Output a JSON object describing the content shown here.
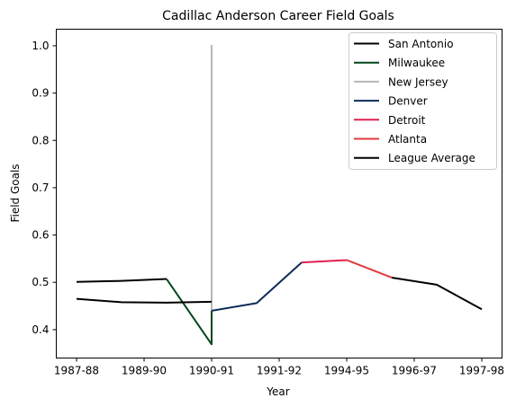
{
  "chart_data": {
    "type": "line",
    "title": "Cadillac Anderson Career Field Goals",
    "xlabel": "Year",
    "ylabel": "Field Goals",
    "x_ticks": [
      "1987-88",
      "1989-90",
      "1990-91",
      "1991-92",
      "1994-95",
      "1996-97",
      "1997-98"
    ],
    "x_tick_index": [
      0,
      1.5,
      3,
      4.5,
      6,
      7.5,
      9
    ],
    "ylim": [
      0.34,
      1.035
    ],
    "xlim": [
      -0.45,
      9.45
    ],
    "y_ticks": [
      "0.4",
      "0.5",
      "0.6",
      "0.7",
      "0.8",
      "0.9",
      "1.0"
    ],
    "legend_position": "top-right",
    "grid": false,
    "series": [
      {
        "name": "San Antonio",
        "color": "#000000",
        "points": [
          [
            0,
            0.501
          ],
          [
            1,
            0.503
          ],
          [
            2,
            0.507
          ]
        ]
      },
      {
        "name": "Milwaukee",
        "color": "#00471b",
        "points": [
          [
            2,
            0.507
          ],
          [
            3,
            0.369
          ],
          [
            3,
            0.44
          ]
        ]
      },
      {
        "name": "New Jersey",
        "color": "#b5b7b9",
        "points": [
          [
            3,
            0.44
          ],
          [
            3,
            1.0
          ],
          [
            3,
            0.44
          ]
        ]
      },
      {
        "name": "Denver",
        "color": "#0d2b5a",
        "points": [
          [
            3,
            0.44
          ],
          [
            4,
            0.456
          ],
          [
            5,
            0.542
          ]
        ]
      },
      {
        "name": "Detroit",
        "color": "#e0204e",
        "points": [
          [
            5,
            0.542
          ],
          [
            6,
            0.547
          ]
        ]
      },
      {
        "name": "Atlanta",
        "color": "#e03a3e",
        "points": [
          [
            6,
            0.547
          ],
          [
            7,
            0.51
          ]
        ]
      },
      {
        "name": "San Antonio",
        "color": "#000000",
        "points": [
          [
            7,
            0.51
          ],
          [
            8,
            0.495
          ],
          [
            9,
            0.443
          ]
        ]
      },
      {
        "name": "League Average",
        "color": "#000000",
        "points": [
          [
            0,
            0.465
          ],
          [
            1,
            0.458
          ],
          [
            2,
            0.457
          ],
          [
            3,
            0.459
          ]
        ]
      }
    ],
    "legend": [
      {
        "label": "San Antonio",
        "color": "#000000"
      },
      {
        "label": "Milwaukee",
        "color": "#00471b"
      },
      {
        "label": "New Jersey",
        "color": "#b5b7b9"
      },
      {
        "label": "Denver",
        "color": "#0d2b5a"
      },
      {
        "label": "Detroit",
        "color": "#e0204e"
      },
      {
        "label": "Atlanta",
        "color": "#e03a3e"
      },
      {
        "label": "League Average",
        "color": "#000000"
      }
    ]
  }
}
